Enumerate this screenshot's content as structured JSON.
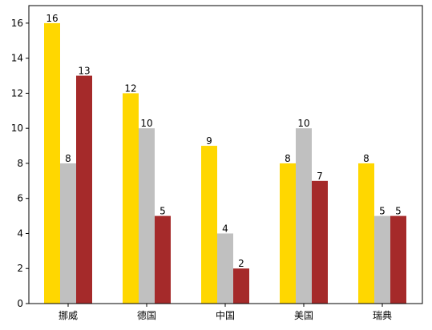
{
  "chart_data": {
    "type": "bar",
    "categories": [
      "挪威",
      "德国",
      "中国",
      "美国",
      "瑞典"
    ],
    "series": [
      {
        "values": [
          16,
          12,
          9,
          8,
          8
        ],
        "color": "#FFD700"
      },
      {
        "values": [
          8,
          10,
          4,
          10,
          5
        ],
        "color": "#C0C0C0"
      },
      {
        "values": [
          13,
          5,
          2,
          7,
          5
        ],
        "color": "#A52A2A"
      }
    ],
    "title": "",
    "xlabel": "",
    "ylabel": "",
    "ylim": [
      0,
      17
    ],
    "yticks": [
      0,
      2,
      4,
      6,
      8,
      10,
      12,
      14,
      16
    ],
    "grid": false,
    "legend": "none",
    "data_labels": true
  }
}
